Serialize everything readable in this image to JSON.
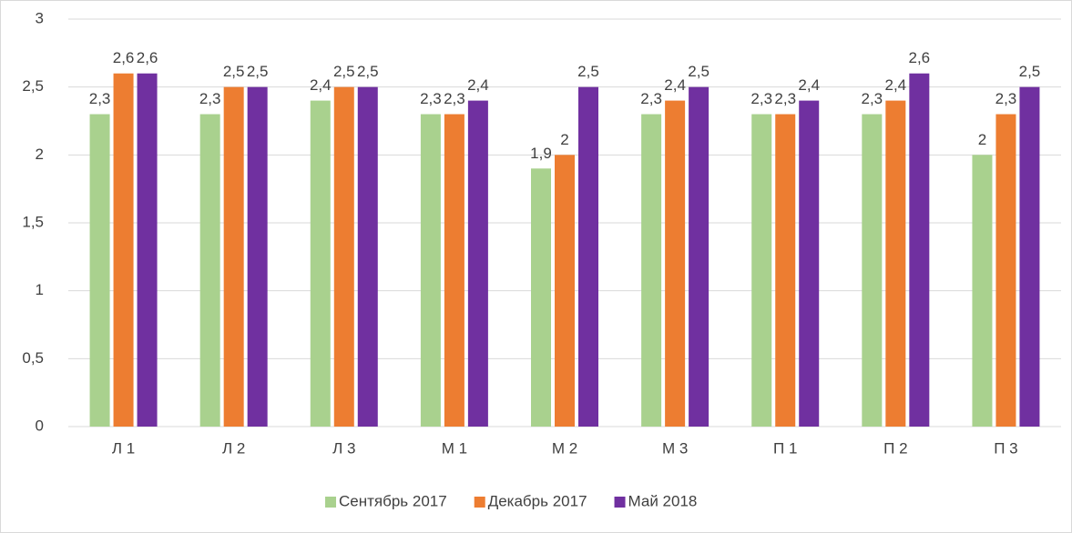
{
  "chart_data": {
    "type": "bar",
    "categories": [
      "Л 1",
      "Л 2",
      "Л 3",
      "М 1",
      "М 2",
      "М 3",
      "П 1",
      "П 2",
      "П 3"
    ],
    "series": [
      {
        "name": "Сентябрь 2017",
        "color": "#a9d18e",
        "values": [
          2.3,
          2.3,
          2.4,
          2.3,
          1.9,
          2.3,
          2.3,
          2.3,
          2.0
        ],
        "value_labels": [
          "2,3",
          "2,3",
          "2,4",
          "2,3",
          "1,9",
          "2,3",
          "2,3",
          "2,3",
          "2"
        ]
      },
      {
        "name": "Декабрь 2017",
        "color": "#ed7d31",
        "values": [
          2.6,
          2.5,
          2.5,
          2.3,
          2.0,
          2.4,
          2.3,
          2.4,
          2.3
        ],
        "value_labels": [
          "2,6",
          "2,5",
          "2,5",
          "2,3",
          "2",
          "2,4",
          "2,3",
          "2,4",
          "2,3"
        ]
      },
      {
        "name": "Май 2018",
        "color": "#7030a0",
        "values": [
          2.6,
          2.5,
          2.5,
          2.4,
          2.5,
          2.5,
          2.4,
          2.6,
          2.5
        ],
        "value_labels": [
          "2,6",
          "2,5",
          "2,5",
          "2,4",
          "2,5",
          "2,5",
          "2,4",
          "2,6",
          "2,5"
        ]
      }
    ],
    "ylim": [
      0,
      3
    ],
    "yticks": [
      0,
      {
        "value": 0.5,
        "label": "0,5"
      },
      1,
      {
        "value": 1.5,
        "label": "1,5"
      },
      2,
      {
        "value": 2.5,
        "label": "2,5"
      },
      3
    ],
    "grid": true,
    "legend": "bottom"
  }
}
